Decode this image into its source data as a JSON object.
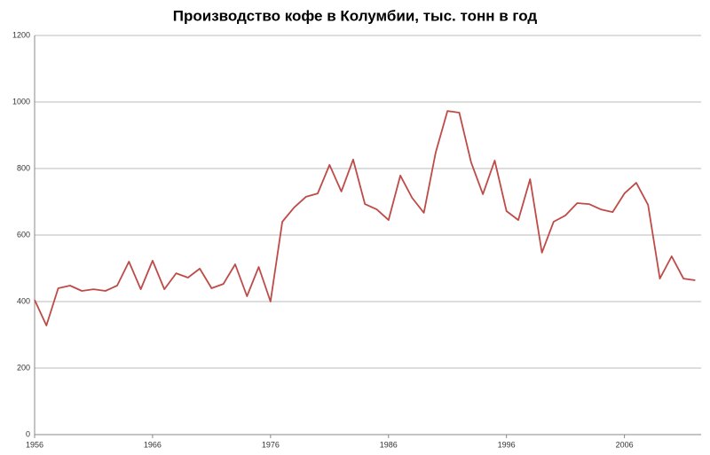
{
  "chart_data": {
    "type": "line",
    "title": "Производство кофе в Колумбии, тыс. тонн в год",
    "x": [
      1956,
      1957,
      1958,
      1959,
      1960,
      1961,
      1962,
      1963,
      1964,
      1965,
      1966,
      1967,
      1968,
      1969,
      1970,
      1971,
      1972,
      1973,
      1974,
      1975,
      1976,
      1977,
      1978,
      1979,
      1980,
      1981,
      1982,
      1983,
      1984,
      1985,
      1986,
      1987,
      1988,
      1989,
      1990,
      1991,
      1992,
      1993,
      1994,
      1995,
      1996,
      1997,
      1998,
      1999,
      2000,
      2001,
      2002,
      2003,
      2004,
      2005,
      2006,
      2007,
      2008,
      2009,
      2010,
      2011,
      2012
    ],
    "values": [
      405,
      328,
      440,
      448,
      432,
      437,
      432,
      448,
      520,
      437,
      523,
      437,
      485,
      472,
      499,
      440,
      453,
      512,
      416,
      504,
      400,
      640,
      683,
      715,
      725,
      811,
      731,
      827,
      693,
      677,
      645,
      779,
      712,
      667,
      848,
      973,
      968,
      819,
      723,
      824,
      672,
      645,
      768,
      547,
      640,
      659,
      696,
      693,
      677,
      669,
      725,
      757,
      691,
      469,
      536,
      469,
      464
    ],
    "color": "#be4b48",
    "xlim": [
      1956,
      2012.5
    ],
    "xticks": [
      1956,
      1966,
      1976,
      1986,
      1996,
      2006
    ],
    "ylim": [
      0,
      1200
    ],
    "yticks": [
      0,
      200,
      400,
      600,
      800,
      1000,
      1200
    ],
    "grid": true
  }
}
